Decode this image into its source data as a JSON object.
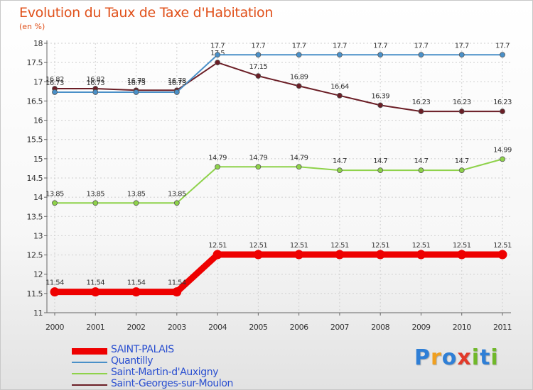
{
  "header": {
    "title": "Evolution du Taux de Taxe d'Habitation",
    "subtitle": "(en %)"
  },
  "logo": {
    "letters": [
      "P",
      "r",
      "o",
      "x",
      "i",
      "t",
      "i"
    ],
    "colors": [
      "#2f7fd6",
      "#f0a020",
      "#2f7fd6",
      "#e23a2a",
      "#70b82a",
      "#2f7fd6",
      "#70b82a"
    ]
  },
  "chart_data": {
    "type": "line",
    "title": "Evolution du Taux de Taxe d'Habitation",
    "ylabel": "(en %)",
    "xlabel": "",
    "categories": [
      "2000",
      "2001",
      "2002",
      "2003",
      "2004",
      "2005",
      "2006",
      "2007",
      "2008",
      "2009",
      "2010",
      "2011"
    ],
    "ylim": [
      11,
      18
    ],
    "yticks": [
      "11",
      "11.5",
      "12",
      "12.5",
      "13",
      "13.5",
      "14",
      "14.5",
      "15",
      "15.5",
      "16",
      "16.5",
      "17",
      "17.5",
      "18"
    ],
    "grid": true,
    "legend_position": "bottom-left",
    "series": [
      {
        "name": "SAINT-PALAIS",
        "color": "#ee0000",
        "values": [
          11.54,
          11.54,
          11.54,
          11.54,
          12.51,
          12.51,
          12.51,
          12.51,
          12.51,
          12.51,
          12.51,
          12.51
        ],
        "labels": [
          "11.54",
          "11.54",
          "11.54",
          "11.54",
          "12.51",
          "12.51",
          "12.51",
          "12.51",
          "12.51",
          "12.51",
          "12.51",
          "12.51"
        ]
      },
      {
        "name": "Quantilly",
        "color": "#4a90c8",
        "values": [
          16.73,
          16.73,
          16.73,
          16.73,
          17.7,
          17.7,
          17.7,
          17.7,
          17.7,
          17.7,
          17.7,
          17.7
        ],
        "labels": [
          "16.73",
          "16.73",
          "16.73",
          "16.73",
          "17.7",
          "17.7",
          "17.7",
          "17.7",
          "17.7",
          "17.7",
          "17.7",
          "17.7"
        ]
      },
      {
        "name": "Saint-Martin-d'Auxigny",
        "color": "#8ed24a",
        "values": [
          13.85,
          13.85,
          13.85,
          13.85,
          14.79,
          14.79,
          14.79,
          14.7,
          14.7,
          14.7,
          14.7,
          14.99
        ],
        "labels": [
          "13.85",
          "13.85",
          "13.85",
          "13.85",
          "14.79",
          "14.79",
          "14.79",
          "14.7",
          "14.7",
          "14.7",
          "14.7",
          "14.99"
        ]
      },
      {
        "name": "Saint-Georges-sur-Moulon",
        "color": "#6b1e26",
        "values": [
          16.82,
          16.82,
          16.78,
          16.78,
          17.5,
          17.15,
          16.89,
          16.64,
          16.39,
          16.23,
          16.23,
          16.23
        ],
        "labels": [
          "16.82",
          "16.82",
          "16.78",
          "16.78",
          "17.5",
          "17.15",
          "16.89",
          "16.64",
          "16.39",
          "16.23",
          "16.23",
          "16.23"
        ]
      }
    ]
  }
}
